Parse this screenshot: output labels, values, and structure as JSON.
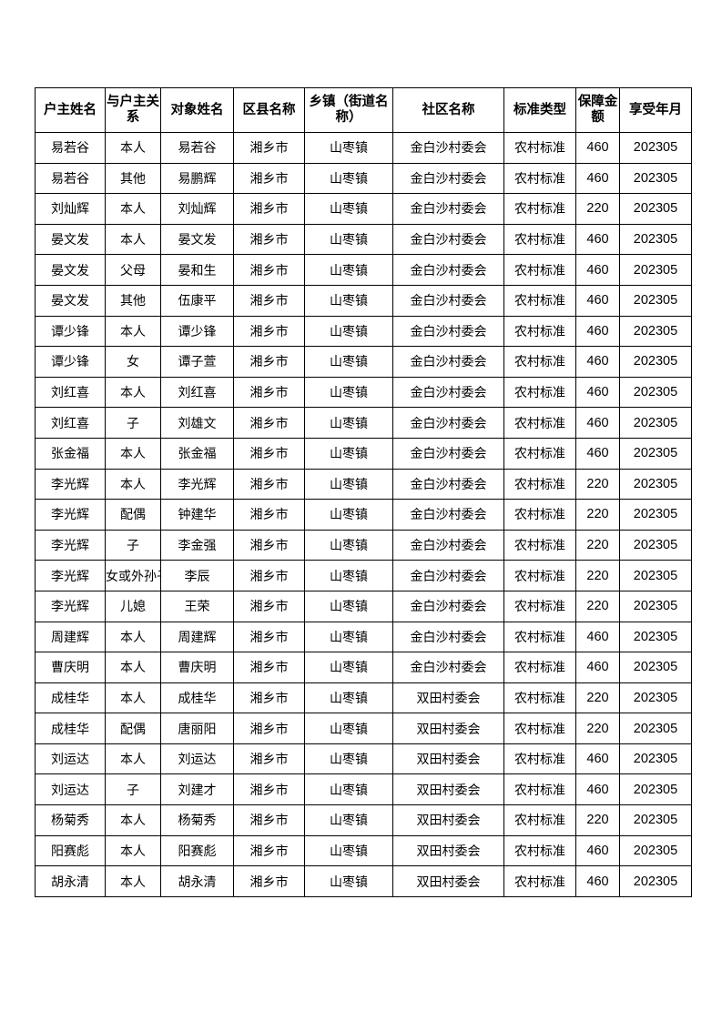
{
  "headers": [
    "户主姓名",
    "与户主关系",
    "对象姓名",
    "区县名称",
    "乡镇（街道名称）",
    "社区名称",
    "标准类型",
    "保障金额",
    "享受年月"
  ],
  "rows": [
    [
      "易若谷",
      "本人",
      "易若谷",
      "湘乡市",
      "山枣镇",
      "金白沙村委会",
      "农村标准",
      "460",
      "202305"
    ],
    [
      "易若谷",
      "其他",
      "易鹏辉",
      "湘乡市",
      "山枣镇",
      "金白沙村委会",
      "农村标准",
      "460",
      "202305"
    ],
    [
      "刘灿辉",
      "本人",
      "刘灿辉",
      "湘乡市",
      "山枣镇",
      "金白沙村委会",
      "农村标准",
      "220",
      "202305"
    ],
    [
      "晏文发",
      "本人",
      "晏文发",
      "湘乡市",
      "山枣镇",
      "金白沙村委会",
      "农村标准",
      "460",
      "202305"
    ],
    [
      "晏文发",
      "父母",
      "晏和生",
      "湘乡市",
      "山枣镇",
      "金白沙村委会",
      "农村标准",
      "460",
      "202305"
    ],
    [
      "晏文发",
      "其他",
      "伍康平",
      "湘乡市",
      "山枣镇",
      "金白沙村委会",
      "农村标准",
      "460",
      "202305"
    ],
    [
      "谭少锋",
      "本人",
      "谭少锋",
      "湘乡市",
      "山枣镇",
      "金白沙村委会",
      "农村标准",
      "460",
      "202305"
    ],
    [
      "谭少锋",
      "女",
      "谭子萱",
      "湘乡市",
      "山枣镇",
      "金白沙村委会",
      "农村标准",
      "460",
      "202305"
    ],
    [
      "刘红喜",
      "本人",
      "刘红喜",
      "湘乡市",
      "山枣镇",
      "金白沙村委会",
      "农村标准",
      "460",
      "202305"
    ],
    [
      "刘红喜",
      "子",
      "刘雄文",
      "湘乡市",
      "山枣镇",
      "金白沙村委会",
      "农村标准",
      "460",
      "202305"
    ],
    [
      "张金福",
      "本人",
      "张金福",
      "湘乡市",
      "山枣镇",
      "金白沙村委会",
      "农村标准",
      "460",
      "202305"
    ],
    [
      "李光辉",
      "本人",
      "李光辉",
      "湘乡市",
      "山枣镇",
      "金白沙村委会",
      "农村标准",
      "220",
      "202305"
    ],
    [
      "李光辉",
      "配偶",
      "钟建华",
      "湘乡市",
      "山枣镇",
      "金白沙村委会",
      "农村标准",
      "220",
      "202305"
    ],
    [
      "李光辉",
      "子",
      "李金强",
      "湘乡市",
      "山枣镇",
      "金白沙村委会",
      "农村标准",
      "220",
      "202305"
    ],
    [
      "李光辉",
      "女或外孙子",
      "李辰",
      "湘乡市",
      "山枣镇",
      "金白沙村委会",
      "农村标准",
      "220",
      "202305"
    ],
    [
      "李光辉",
      "儿媳",
      "王荣",
      "湘乡市",
      "山枣镇",
      "金白沙村委会",
      "农村标准",
      "220",
      "202305"
    ],
    [
      "周建辉",
      "本人",
      "周建辉",
      "湘乡市",
      "山枣镇",
      "金白沙村委会",
      "农村标准",
      "460",
      "202305"
    ],
    [
      "曹庆明",
      "本人",
      "曹庆明",
      "湘乡市",
      "山枣镇",
      "金白沙村委会",
      "农村标准",
      "460",
      "202305"
    ],
    [
      "成桂华",
      "本人",
      "成桂华",
      "湘乡市",
      "山枣镇",
      "双田村委会",
      "农村标准",
      "220",
      "202305"
    ],
    [
      "成桂华",
      "配偶",
      "唐丽阳",
      "湘乡市",
      "山枣镇",
      "双田村委会",
      "农村标准",
      "220",
      "202305"
    ],
    [
      "刘运达",
      "本人",
      "刘运达",
      "湘乡市",
      "山枣镇",
      "双田村委会",
      "农村标准",
      "460",
      "202305"
    ],
    [
      "刘运达",
      "子",
      "刘建才",
      "湘乡市",
      "山枣镇",
      "双田村委会",
      "农村标准",
      "460",
      "202305"
    ],
    [
      "杨菊秀",
      "本人",
      "杨菊秀",
      "湘乡市",
      "山枣镇",
      "双田村委会",
      "农村标准",
      "220",
      "202305"
    ],
    [
      "阳赛彪",
      "本人",
      "阳赛彪",
      "湘乡市",
      "山枣镇",
      "双田村委会",
      "农村标准",
      "460",
      "202305"
    ],
    [
      "胡永清",
      "本人",
      "胡永清",
      "湘乡市",
      "山枣镇",
      "双田村委会",
      "农村标准",
      "460",
      "202305"
    ]
  ]
}
